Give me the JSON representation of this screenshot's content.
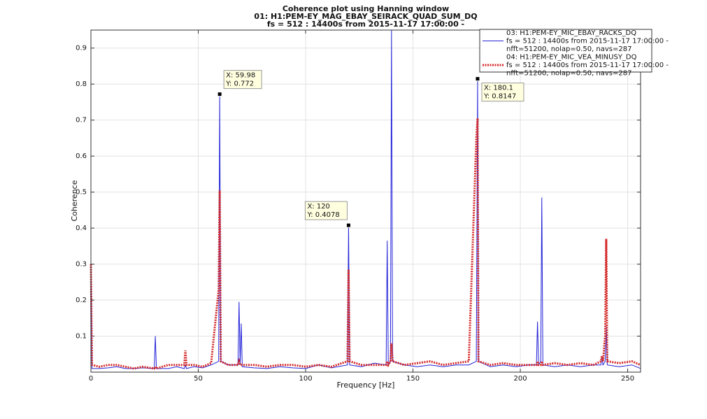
{
  "chart_data": {
    "type": "line",
    "title": [
      "Coherence plot using Hanning window",
      "01: H1:PEM-EY_MAG_EBAY_SEIRACK_QUAD_SUM_DQ",
      "fs = 512 : 14400s from 2015-11-17 17:00:00 -"
    ],
    "xlabel": "Frequency [Hz]",
    "ylabel": "Coherence",
    "xlim": [
      0,
      256
    ],
    "ylim": [
      0,
      0.95
    ],
    "xticks": [
      0,
      50,
      100,
      150,
      200,
      250
    ],
    "yticks": [
      0.1,
      0.2,
      0.3,
      0.4,
      0.5,
      0.6,
      0.7,
      0.8,
      0.9
    ],
    "grid": true,
    "legend": "upper right",
    "x": [
      0,
      0.5,
      4,
      8,
      12,
      16,
      20,
      24,
      29.5,
      30,
      30.5,
      36,
      40,
      43.5,
      44,
      44.5,
      48,
      52,
      56,
      59.5,
      59.98,
      60.5,
      64,
      68.5,
      69,
      69.5,
      70,
      70.5,
      76,
      82,
      88,
      94,
      100,
      106,
      112,
      119.5,
      120,
      120.5,
      126,
      132,
      137.5,
      138,
      138.5,
      139.5,
      140,
      140.5,
      146,
      152,
      158,
      164,
      170,
      176,
      179.5,
      180.1,
      180.5,
      186,
      192,
      198,
      204,
      207.5,
      208,
      208.5,
      209.5,
      210,
      210.5,
      216,
      222,
      228,
      234,
      237.5,
      238,
      238.5,
      239.5,
      240,
      240.5,
      246,
      252,
      256
    ],
    "series": [
      {
        "name": "03: H1:PEM-EY_MIC_EBAY_RACKS_DQ",
        "details": [
          "fs = 512 : 14400s from 2015-11-17 17:00:00 -",
          "nfft=51200, nolap=0.50,  navs=287"
        ],
        "color": "#2323d8",
        "style": "solid",
        "values": [
          0.3,
          0.01,
          0.01,
          0.012,
          0.015,
          0.01,
          0.01,
          0.012,
          0.01,
          0.1,
          0.01,
          0.01,
          0.015,
          0.01,
          0.02,
          0.01,
          0.015,
          0.012,
          0.02,
          0.03,
          0.772,
          0.03,
          0.02,
          0.02,
          0.195,
          0.02,
          0.135,
          0.015,
          0.012,
          0.01,
          0.015,
          0.012,
          0.01,
          0.02,
          0.012,
          0.02,
          0.4078,
          0.02,
          0.015,
          0.025,
          0.02,
          0.365,
          0.02,
          0.03,
          0.95,
          0.03,
          0.02,
          0.015,
          0.02,
          0.015,
          0.02,
          0.02,
          0.03,
          0.8147,
          0.03,
          0.015,
          0.02,
          0.015,
          0.02,
          0.02,
          0.14,
          0.02,
          0.03,
          0.485,
          0.02,
          0.015,
          0.02,
          0.015,
          0.02,
          0.02,
          0.04,
          0.02,
          0.03,
          0.13,
          0.02,
          0.015,
          0.02,
          0.01
        ]
      },
      {
        "name": "04: H1:PEM-EY_MIC_VEA_MINUSY_DQ",
        "details": [
          "fs = 512 : 14400s from 2015-11-17 17:00:00 -",
          "nfft=51200, nolap=0.50,  navs=287"
        ],
        "color": "#d42a2a",
        "style": "dotted",
        "values": [
          0.3,
          0.02,
          0.015,
          0.02,
          0.02,
          0.015,
          0.01,
          0.015,
          0.01,
          0.015,
          0.01,
          0.02,
          0.02,
          0.02,
          0.06,
          0.02,
          0.02,
          0.015,
          0.025,
          0.23,
          0.505,
          0.03,
          0.02,
          0.02,
          0.03,
          0.02,
          0.02,
          0.02,
          0.02,
          0.015,
          0.02,
          0.02,
          0.015,
          0.02,
          0.015,
          0.03,
          0.285,
          0.03,
          0.02,
          0.02,
          0.02,
          0.03,
          0.02,
          0.03,
          0.08,
          0.03,
          0.02,
          0.025,
          0.03,
          0.02,
          0.025,
          0.03,
          0.65,
          0.705,
          0.03,
          0.02,
          0.025,
          0.02,
          0.02,
          0.02,
          0.03,
          0.02,
          0.02,
          0.03,
          0.02,
          0.025,
          0.02,
          0.025,
          0.02,
          0.03,
          0.045,
          0.03,
          0.1,
          0.37,
          0.03,
          0.025,
          0.03,
          0.02
        ]
      }
    ],
    "datatips": [
      {
        "x": 59.98,
        "y": 0.772,
        "label_x": "X: 59.98",
        "label_y": "Y: 0.772"
      },
      {
        "x": 120,
        "y": 0.4078,
        "label_x": "X: 120",
        "label_y": "Y: 0.4078"
      },
      {
        "x": 180.1,
        "y": 0.8147,
        "label_x": "X: 180.1",
        "label_y": "Y: 0.8147"
      }
    ]
  }
}
